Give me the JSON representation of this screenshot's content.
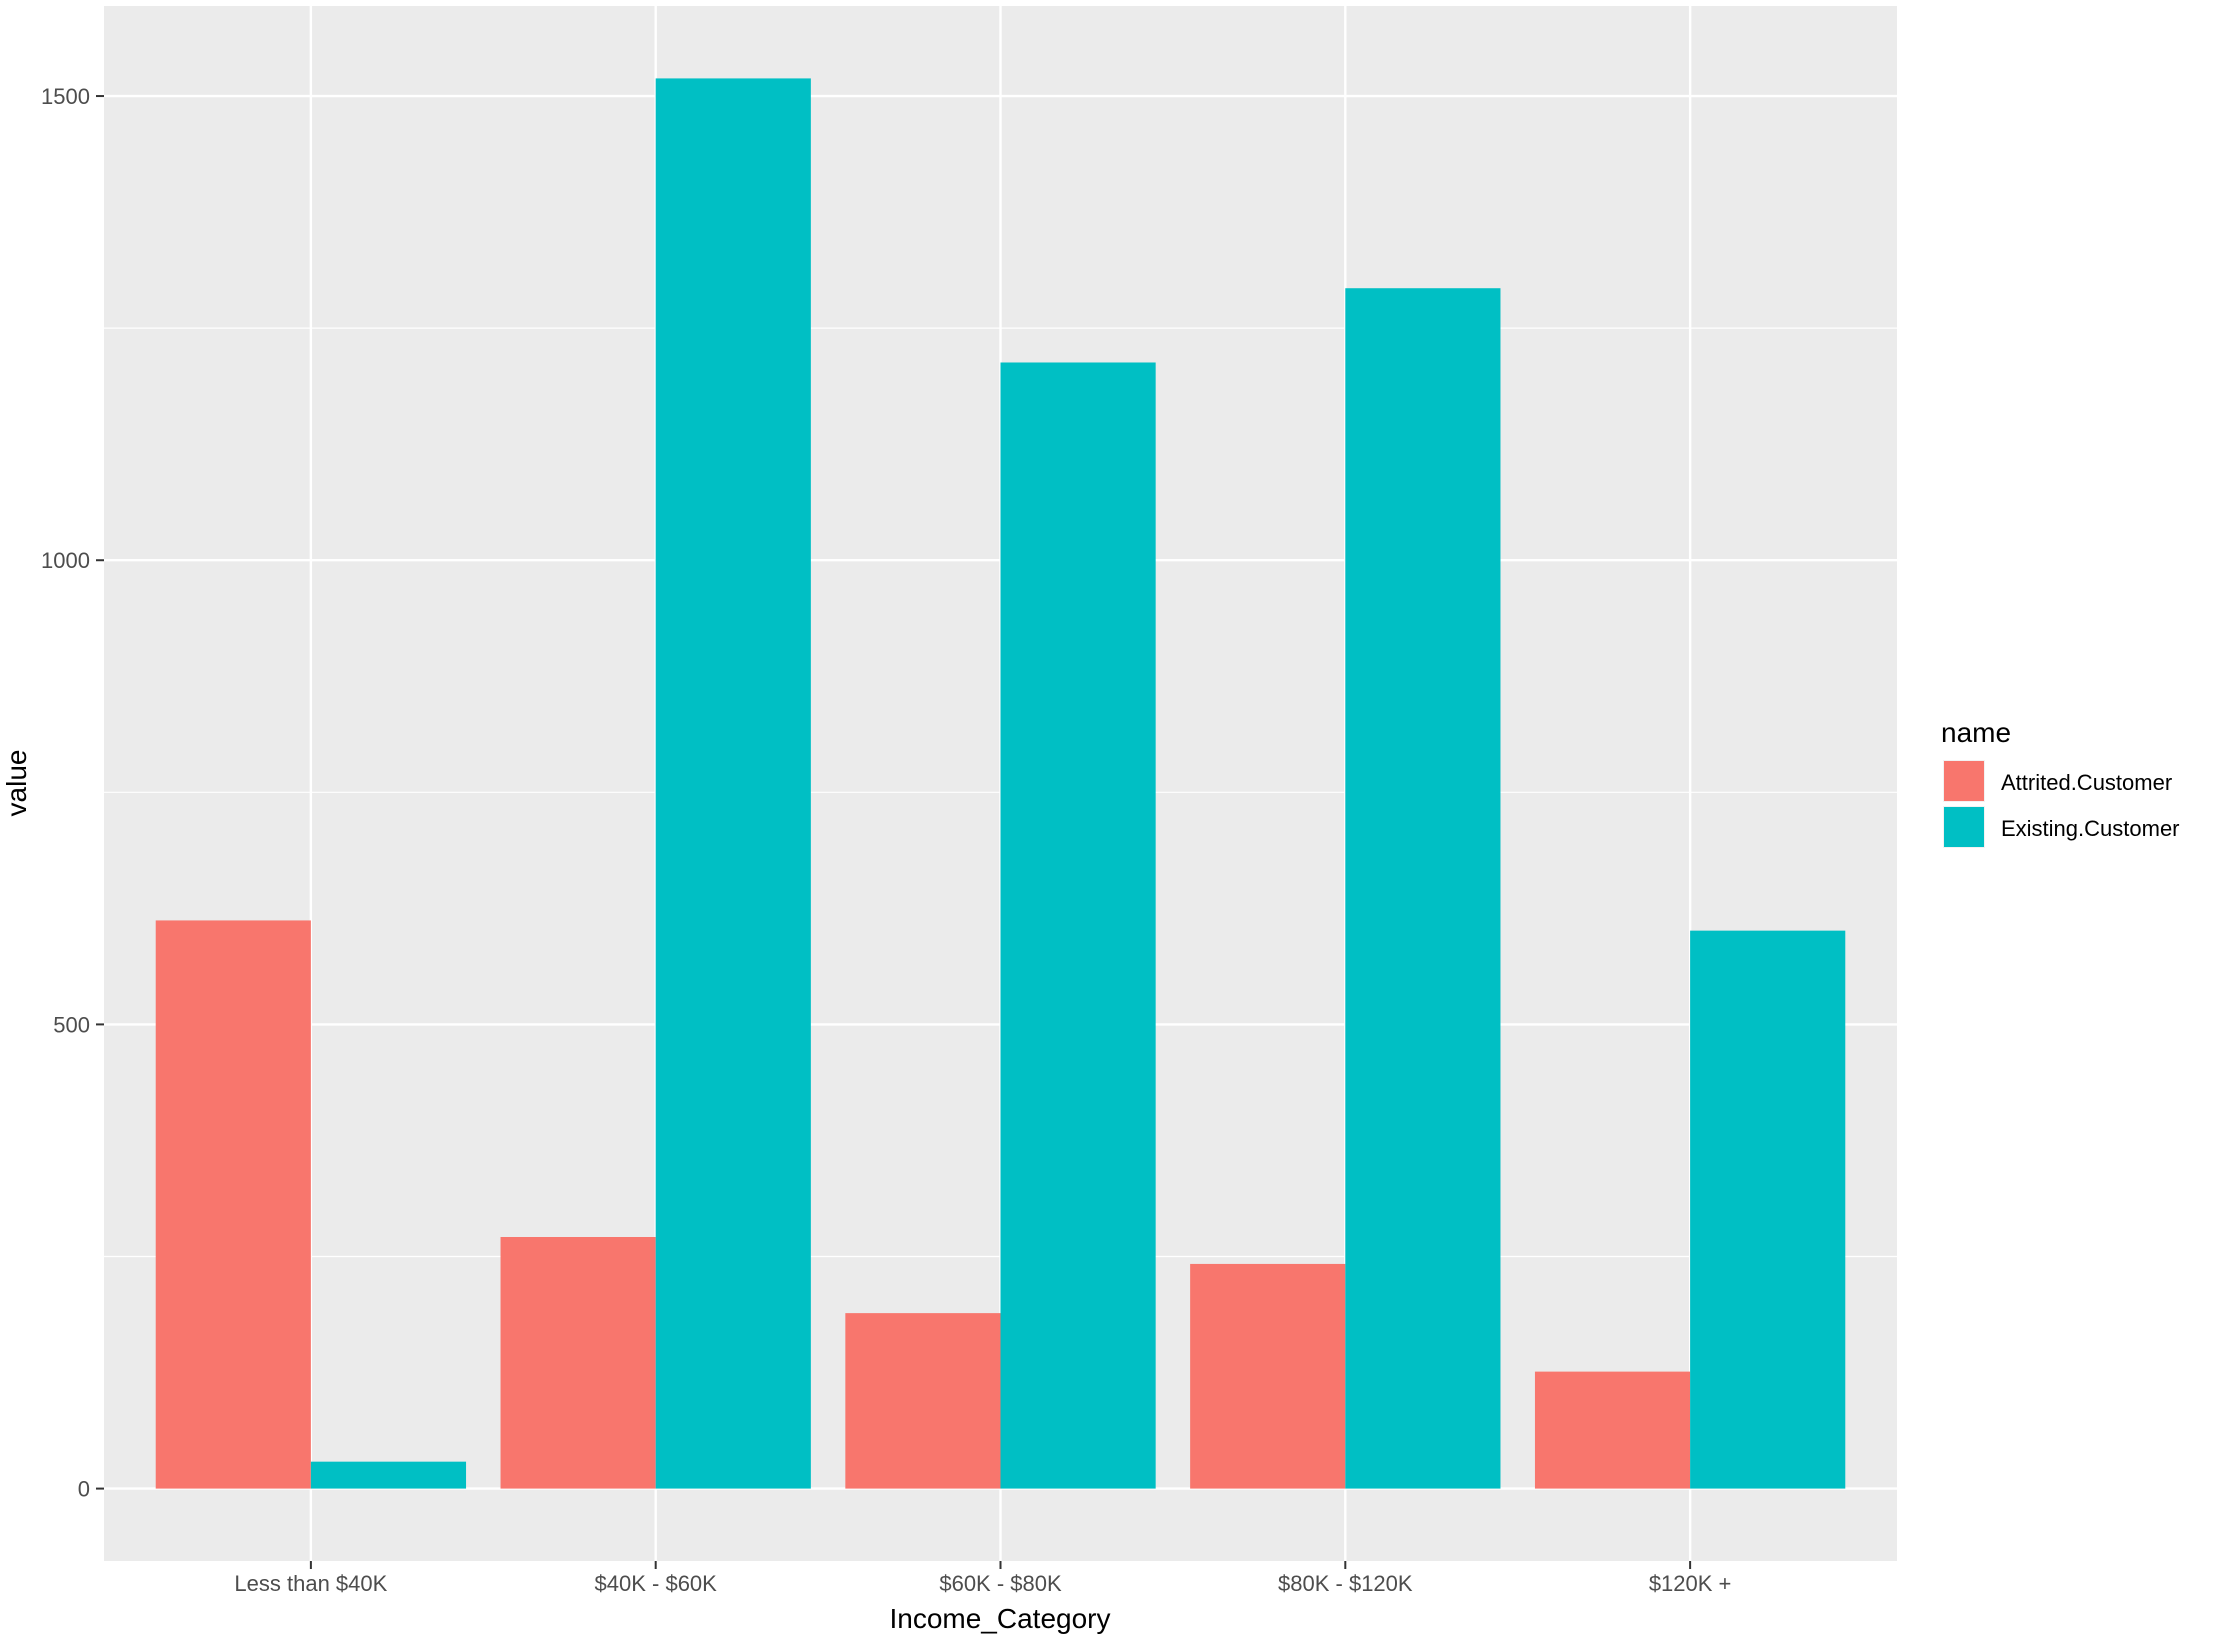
{
  "chart_data": {
    "type": "bar",
    "categories": [
      "Less than $40K",
      "$40K - $60K",
      "$60K - $80K",
      "$80K - $120K",
      "$120K +"
    ],
    "series": [
      {
        "name": "Attrited.Customer",
        "color": "#F8766D",
        "values": [
          612,
          271,
          189,
          242,
          126
        ]
      },
      {
        "name": "Existing.Customer",
        "color": "#00BFC4",
        "values": [
          29,
          1519,
          1213,
          1293,
          601
        ]
      }
    ],
    "xlabel": "Income_Category",
    "ylabel": "value",
    "ylim": [
      -78,
      1597
    ],
    "yticks": [
      0,
      500,
      1000,
      1500
    ],
    "grid": true,
    "legend": {
      "title": "name",
      "position": "right"
    }
  }
}
